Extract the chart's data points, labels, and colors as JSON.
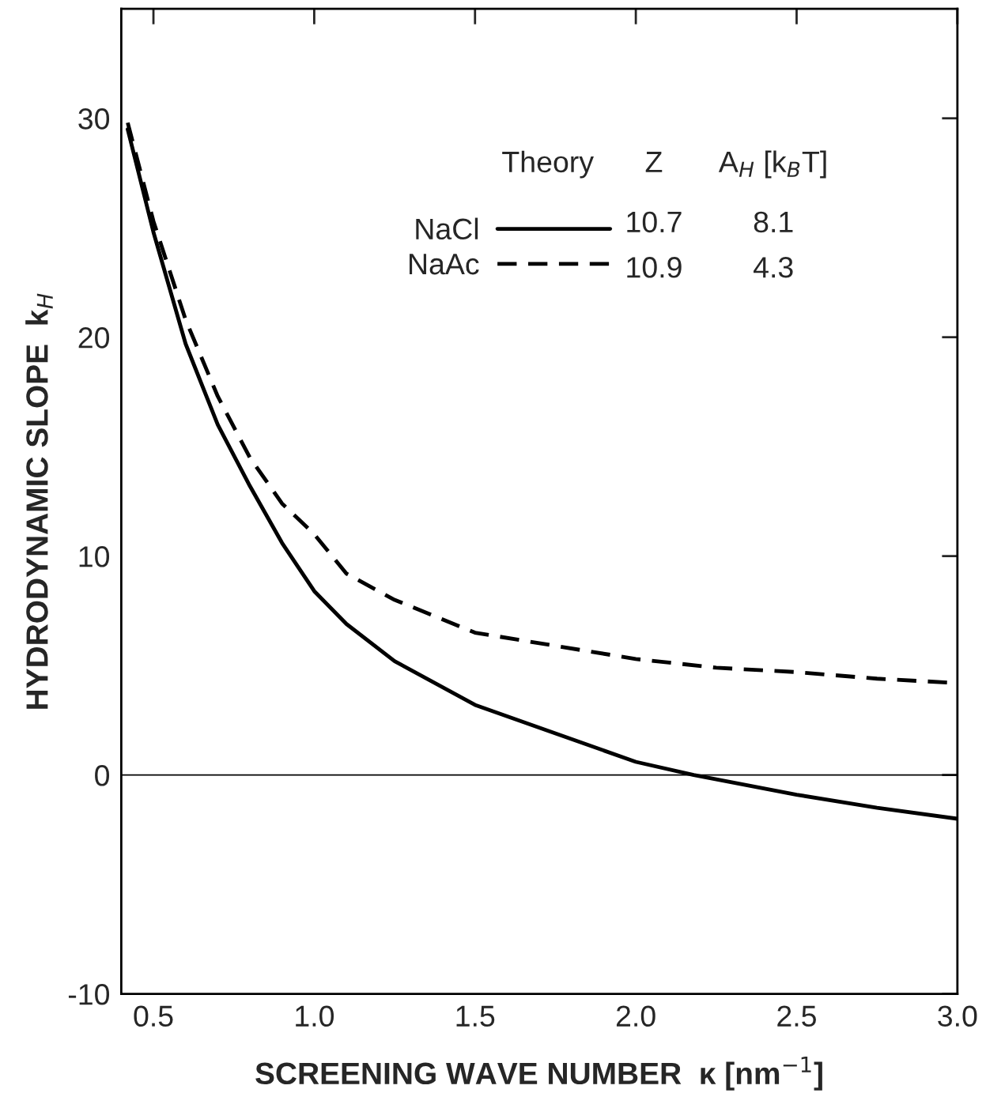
{
  "chart_data": {
    "type": "line",
    "xlabel": "SCREENING WAVE NUMBER  κ [nm$^{−1}$]",
    "ylabel": "HYDRODYNAMIC SLOPE  k$_{H}$",
    "xlim": [
      0.4,
      3.0
    ],
    "xticks": [
      0.5,
      {
        "value": 1,
        "label": "1.0"
      },
      1.5,
      {
        "value": 2,
        "label": "2.0"
      },
      2.5,
      {
        "value": 3,
        "label": "3.0"
      }
    ],
    "ylim": [
      -10,
      35
    ],
    "yticks": [
      -10,
      0,
      10,
      20,
      30
    ],
    "grid": false,
    "legend": "top right",
    "series": [
      {
        "name": "NaCl",
        "color": "#000000",
        "line_style": "solid",
        "x": [
          0.42,
          0.5,
          0.6,
          0.7,
          0.8,
          0.9,
          1.0,
          1.1,
          1.25,
          1.5,
          1.75,
          2.0,
          2.18,
          2.5,
          2.75,
          3.0
        ],
        "values": [
          29.5,
          24.8,
          19.7,
          16.0,
          13.2,
          10.6,
          8.4,
          6.9,
          5.2,
          3.2,
          1.9,
          0.6,
          0.0,
          -0.9,
          -1.5,
          -2.0
        ]
      },
      {
        "name": "NaAc",
        "color": "#000000",
        "line_style": "dashed",
        "x": [
          0.42,
          0.5,
          0.6,
          0.7,
          0.8,
          0.9,
          1.0,
          1.1,
          1.25,
          1.5,
          1.75,
          2.0,
          2.25,
          2.5,
          2.75,
          3.0
        ],
        "values": [
          29.8,
          25.3,
          20.8,
          17.3,
          14.5,
          12.4,
          11.0,
          9.2,
          8.0,
          6.5,
          5.9,
          5.3,
          4.9,
          4.7,
          4.4,
          4.2
        ]
      }
    ],
    "ref_lines": [
      {
        "axis": "y",
        "value": 0,
        "color": "#000000",
        "line_style": "solid"
      }
    ],
    "annotations": [
      "Theory",
      "Z",
      "A$_{H}$ [k$_{B}$T]",
      "10.7",
      "8.1",
      "10.9",
      "4.3"
    ]
  }
}
